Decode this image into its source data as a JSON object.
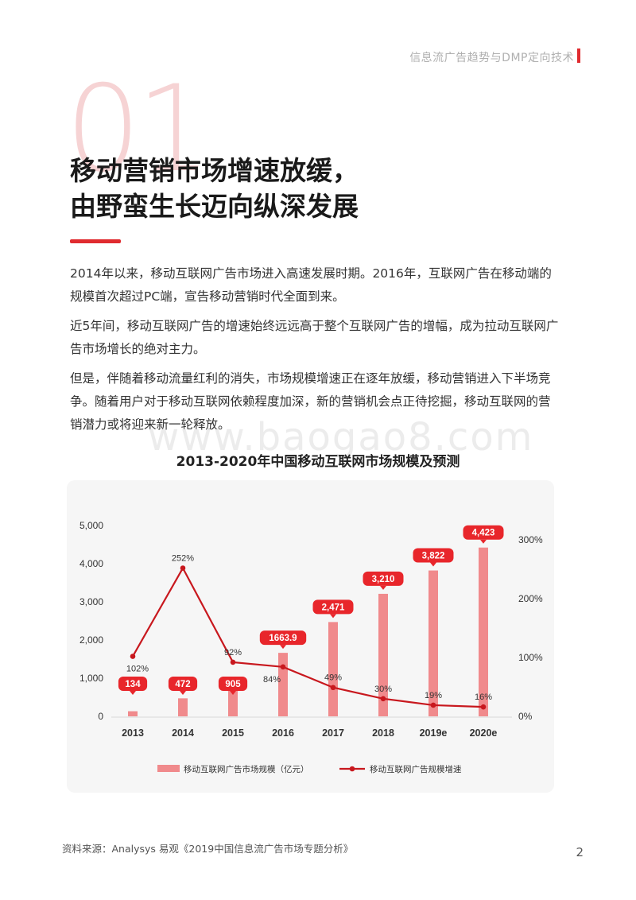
{
  "header": {
    "title": "信息流广告趋势与DMP定向技术"
  },
  "section": {
    "number": "01",
    "title_line1": "移动营销市场增速放缓，",
    "title_line2": "由野蛮生长迈向纵深发展"
  },
  "paragraphs": [
    "2014年以来，移动互联网广告市场进入高速发展时期。2016年，互联网广告在移动端的规模首次超过PC端，宣告移动营销时代全面到来。",
    "近5年间，移动互联网广告的增速始终远远高于整个互联网广告的增幅，成为拉动互联网广告市场增长的绝对主力。",
    "但是，伴随着移动流量红利的消失，市场规模增速正在逐年放缓，移动营销进入下半场竞争。随着用户对于移动互联网依赖程度加深，新的营销机会点正待挖掘，移动互联网的营销潜力或将迎来新一轮释放。"
  ],
  "watermark": "www.baogao8.com",
  "chart_data": {
    "type": "bar",
    "title": "2013-2020年中国移动互联网市场规模及预测",
    "categories": [
      "2013",
      "2014",
      "2015",
      "2016",
      "2017",
      "2018",
      "2019e",
      "2020e"
    ],
    "series": [
      {
        "name": "移动互联网广告市场规模（亿元）",
        "type": "bar",
        "axis": "left",
        "values": [
          134,
          472,
          905,
          1663.9,
          2471,
          3210,
          3822,
          4423
        ],
        "labels": [
          "134",
          "472",
          "905",
          "1663.9",
          "2,471",
          "3,210",
          "3,822",
          "4,423"
        ],
        "color": "#f08a8c"
      },
      {
        "name": "移动互联网广告规模增速",
        "type": "line",
        "axis": "right",
        "values": [
          102,
          252,
          92,
          84,
          49,
          30,
          19,
          16
        ],
        "labels": [
          "102%",
          "252%",
          "92%",
          "84%",
          "49%",
          "30%",
          "19%",
          "16%"
        ],
        "color": "#c8181e"
      }
    ],
    "left_axis": {
      "ticks": [
        "0",
        "1,000",
        "2,000",
        "3,000",
        "4,000",
        "5,000"
      ],
      "ylim": [
        0,
        5000
      ]
    },
    "right_axis": {
      "ticks": [
        "0%",
        "100%",
        "200%",
        "300%"
      ],
      "ylim": [
        0,
        300
      ]
    },
    "label_color": "#e8262b",
    "legend_position": "bottom"
  },
  "footer": {
    "source": "资料来源：Analysys 易观《2019中国信息流广告市场专题分析》",
    "page_number": "2"
  }
}
